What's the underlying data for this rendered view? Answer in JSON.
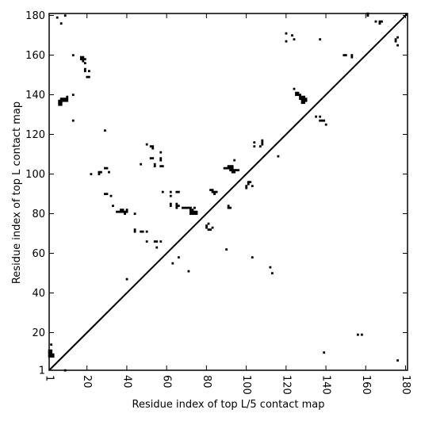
{
  "chart_data": {
    "type": "scatter",
    "title": "",
    "xlabel": "Residue index of top L/5 contact map",
    "ylabel": "Residue index of top L contact map",
    "xlim": [
      1,
      181
    ],
    "ylim": [
      1,
      181
    ],
    "x_ticks": [
      1,
      20,
      40,
      60,
      80,
      100,
      120,
      140,
      160,
      180
    ],
    "y_ticks": [
      1,
      20,
      40,
      60,
      80,
      100,
      120,
      140,
      160,
      180
    ],
    "x_tick_labels": [
      "1",
      "20",
      "40",
      "60",
      "80",
      "100",
      "120",
      "140",
      "160",
      "180"
    ],
    "y_tick_labels": [
      "1",
      "20",
      "40",
      "60",
      "80",
      "100",
      "120",
      "140",
      "160",
      "180"
    ],
    "grid": false,
    "diagonal_line": true,
    "marker": "square",
    "marker_color": "#000000",
    "points": [
      [
        1,
        8
      ],
      [
        1,
        9
      ],
      [
        1,
        10
      ],
      [
        1,
        11
      ],
      [
        2,
        8
      ],
      [
        2,
        9
      ],
      [
        2,
        10
      ],
      [
        2,
        11
      ],
      [
        3,
        8
      ],
      [
        3,
        9
      ],
      [
        2,
        14
      ],
      [
        9,
        1
      ],
      [
        5,
        179
      ],
      [
        7,
        176
      ],
      [
        9,
        180
      ],
      [
        6,
        135
      ],
      [
        6,
        136
      ],
      [
        6,
        137
      ],
      [
        7,
        135
      ],
      [
        7,
        136
      ],
      [
        7,
        137
      ],
      [
        7,
        138
      ],
      [
        8,
        137
      ],
      [
        8,
        138
      ],
      [
        9,
        137
      ],
      [
        9,
        138
      ],
      [
        10,
        137
      ],
      [
        10,
        138
      ],
      [
        10,
        139
      ],
      [
        13,
        140
      ],
      [
        13,
        160
      ],
      [
        13,
        127
      ],
      [
        17,
        158
      ],
      [
        17,
        159
      ],
      [
        18,
        157
      ],
      [
        18,
        158
      ],
      [
        18,
        159
      ],
      [
        19,
        158
      ],
      [
        19,
        156
      ],
      [
        19,
        153
      ],
      [
        19,
        152
      ],
      [
        20,
        149
      ],
      [
        21,
        149
      ],
      [
        21,
        152
      ],
      [
        22,
        100
      ],
      [
        26,
        100
      ],
      [
        26,
        101
      ],
      [
        27,
        101
      ],
      [
        29,
        122
      ],
      [
        29,
        103
      ],
      [
        30,
        103
      ],
      [
        31,
        101
      ],
      [
        29,
        90
      ],
      [
        30,
        90
      ],
      [
        32,
        89
      ],
      [
        33,
        84
      ],
      [
        35,
        81
      ],
      [
        36,
        81
      ],
      [
        37,
        81
      ],
      [
        37,
        82
      ],
      [
        38,
        82
      ],
      [
        38,
        81
      ],
      [
        39,
        80
      ],
      [
        39,
        81
      ],
      [
        40,
        81
      ],
      [
        40,
        82
      ],
      [
        40,
        47
      ],
      [
        44,
        72
      ],
      [
        44,
        71
      ],
      [
        44,
        80
      ],
      [
        47,
        71
      ],
      [
        48,
        71
      ],
      [
        47,
        105
      ],
      [
        50,
        115
      ],
      [
        50,
        71
      ],
      [
        50,
        66
      ],
      [
        52,
        114
      ],
      [
        53,
        113
      ],
      [
        53,
        114
      ],
      [
        52,
        108
      ],
      [
        53,
        108
      ],
      [
        54,
        104
      ],
      [
        54,
        105
      ],
      [
        54,
        66
      ],
      [
        55,
        66
      ],
      [
        55,
        63
      ],
      [
        57,
        66
      ],
      [
        57,
        111
      ],
      [
        57,
        108
      ],
      [
        57,
        107
      ],
      [
        57,
        104
      ],
      [
        58,
        104
      ],
      [
        58,
        91
      ],
      [
        62,
        91
      ],
      [
        62,
        89
      ],
      [
        62,
        85
      ],
      [
        62,
        84
      ],
      [
        63,
        55
      ],
      [
        65,
        91
      ],
      [
        66,
        91
      ],
      [
        65,
        85
      ],
      [
        65,
        84
      ],
      [
        65,
        83
      ],
      [
        66,
        84
      ],
      [
        66,
        58
      ],
      [
        68,
        83
      ],
      [
        69,
        83
      ],
      [
        70,
        83
      ],
      [
        71,
        83
      ],
      [
        72,
        83
      ],
      [
        72,
        82
      ],
      [
        72,
        81
      ],
      [
        72,
        80
      ],
      [
        73,
        82
      ],
      [
        73,
        81
      ],
      [
        73,
        80
      ],
      [
        74,
        83
      ],
      [
        74,
        81
      ],
      [
        74,
        80
      ],
      [
        75,
        81
      ],
      [
        75,
        80
      ],
      [
        71,
        51
      ],
      [
        80,
        74
      ],
      [
        80,
        73
      ],
      [
        81,
        75
      ],
      [
        81,
        72
      ],
      [
        82,
        72
      ],
      [
        83,
        73
      ],
      [
        82,
        92
      ],
      [
        83,
        91
      ],
      [
        83,
        92
      ],
      [
        84,
        91
      ],
      [
        84,
        90
      ],
      [
        85,
        91
      ],
      [
        89,
        103
      ],
      [
        90,
        103
      ],
      [
        91,
        104
      ],
      [
        91,
        103
      ],
      [
        92,
        104
      ],
      [
        92,
        103
      ],
      [
        92,
        102
      ],
      [
        93,
        104
      ],
      [
        93,
        103
      ],
      [
        93,
        102
      ],
      [
        93,
        101
      ],
      [
        94,
        102
      ],
      [
        94,
        101
      ],
      [
        95,
        102
      ],
      [
        96,
        102
      ],
      [
        94,
        107
      ],
      [
        90,
        62
      ],
      [
        91,
        83
      ],
      [
        92,
        83
      ],
      [
        91,
        84
      ],
      [
        100,
        93
      ],
      [
        100,
        94
      ],
      [
        101,
        95
      ],
      [
        101,
        96
      ],
      [
        102,
        96
      ],
      [
        103,
        94
      ],
      [
        103,
        58
      ],
      [
        104,
        114
      ],
      [
        104,
        116
      ],
      [
        107,
        114
      ],
      [
        108,
        115
      ],
      [
        108,
        116
      ],
      [
        108,
        117
      ],
      [
        112,
        53
      ],
      [
        113,
        50
      ],
      [
        116,
        109
      ],
      [
        120,
        171
      ],
      [
        120,
        167
      ],
      [
        123,
        170
      ],
      [
        124,
        168
      ],
      [
        124,
        143
      ],
      [
        125,
        140
      ],
      [
        125,
        141
      ],
      [
        126,
        140
      ],
      [
        126,
        141
      ],
      [
        127,
        140
      ],
      [
        127,
        139
      ],
      [
        127,
        138
      ],
      [
        128,
        139
      ],
      [
        128,
        138
      ],
      [
        128,
        137
      ],
      [
        128,
        136
      ],
      [
        129,
        139
      ],
      [
        129,
        138
      ],
      [
        129,
        137
      ],
      [
        129,
        136
      ],
      [
        130,
        138
      ],
      [
        130,
        137
      ],
      [
        135,
        129
      ],
      [
        137,
        129
      ],
      [
        137,
        127
      ],
      [
        137,
        168
      ],
      [
        138,
        127
      ],
      [
        139,
        127
      ],
      [
        139,
        10
      ],
      [
        140,
        125
      ],
      [
        149,
        160
      ],
      [
        150,
        160
      ],
      [
        153,
        160
      ],
      [
        153,
        159
      ],
      [
        156,
        19
      ],
      [
        158,
        19
      ],
      [
        161,
        181
      ],
      [
        161,
        180
      ],
      [
        165,
        177
      ],
      [
        167,
        177
      ],
      [
        167,
        176
      ],
      [
        168,
        177
      ],
      [
        175,
        168
      ],
      [
        175,
        167
      ],
      [
        176,
        169
      ],
      [
        176,
        165
      ],
      [
        176,
        6
      ]
    ]
  }
}
